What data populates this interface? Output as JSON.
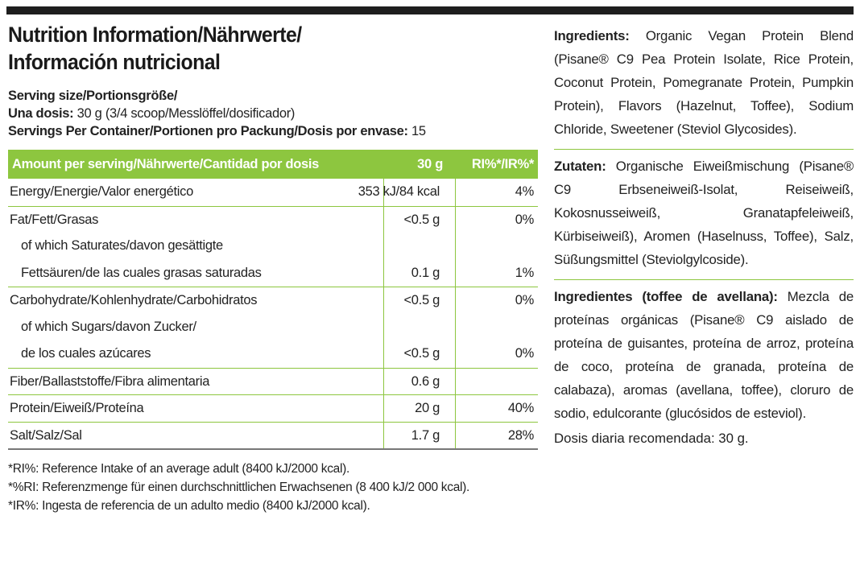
{
  "title": {
    "line1": "Nutrition Information/Nährwerte/",
    "line2": "Información nutricional"
  },
  "serving": {
    "size_label": "Serving size/Portionsgröße/",
    "dose_label": "Una dosis:",
    "dose_value": " 30 g (3/4 scoop/Messlöffel/dosificador)",
    "servings_label": "Servings Per Container/Portionen pro Packung/Dosis por envase:",
    "servings_value": " 15"
  },
  "table": {
    "headers": {
      "amount": "Amount per serving/Nährwerte/Cantidad por dosis",
      "per30": "30 g",
      "ri": "RI%*/IR%*"
    },
    "rows": [
      {
        "label": "Energy/Energie/Valor energético",
        "value": "353 kJ/84 kcal",
        "ri": "4%"
      },
      {
        "label": "Fat/Fett/Grasas",
        "value": "<0.5 g",
        "ri": "0%"
      },
      {
        "label": "of which Saturates/davon gesättigte",
        "value": "",
        "ri": ""
      },
      {
        "label": "Fettsäuren/de las cuales grasas saturadas",
        "value": "0.1 g",
        "ri": "1%"
      },
      {
        "label": "Carbohydrate/Kohlenhydrate/Carbohidratos",
        "value": "<0.5 g",
        "ri": "0%"
      },
      {
        "label": "of which Sugars/davon Zucker/",
        "value": "",
        "ri": ""
      },
      {
        "label": "de los cuales azúcares",
        "value": "<0.5 g",
        "ri": "0%"
      },
      {
        "label": "Fiber/Ballaststoffe/Fibra alimentaria",
        "value": "0.6 g",
        "ri": ""
      },
      {
        "label": "Protein/Eiweiß/Proteína",
        "value": "20 g",
        "ri": "40%"
      },
      {
        "label": "Salt/Salz/Sal",
        "value": "1.7 g",
        "ri": "28%"
      }
    ]
  },
  "footnotes": [
    "*RI%: Reference Intake of an average adult (8400 kJ/2000 kcal).",
    "*%RI: Referenzmenge für einen durchschnittlichen Erwachsenen (8 400 kJ/2 000 kcal).",
    "*IR%: Ingesta de referencia de un adulto medio (8400 kJ/2000 kcal)."
  ],
  "ingredients_en": {
    "label": "Ingredients:",
    "text": " Organic Vegan Protein Blend (Pisane® C9 Pea Protein Isolate, Rice Protein, Coconut Protein, Pomegranate Protein, Pumpkin Protein), Flavors (Hazelnut, Toffee), Sodium Chloride, Sweetener (Steviol Glycosides)."
  },
  "ingredients_de": {
    "label": "Zutaten:",
    "text": " Organische Eiweißmischung (Pisane® C9 Erbseneiweiß-Isolat, Reiseiweiß, Kokosnusseiweiß, Granatapfeleiweiß, Kürbiseiweiß), Aromen (Haselnuss, Toffee), Salz, Süßungsmittel (Steviolgylcoside)."
  },
  "ingredients_es": {
    "label": "Ingredientes (toffee de avellana):",
    "text": " Mezcla de proteínas orgánicas (Pisane® C9 aislado de proteína de guisantes, proteína de arroz, proteína de coco, proteína de granada, proteína de calabaza), aromas (avellana, toffee), cloruro de sodio, edulcorante (glucósidos de esteviol)."
  },
  "daily_dose": "Dosis diaria recomendada: 30 g.",
  "colors": {
    "accent_green": "#8dc63f",
    "top_bar": "#1e1e1e"
  }
}
